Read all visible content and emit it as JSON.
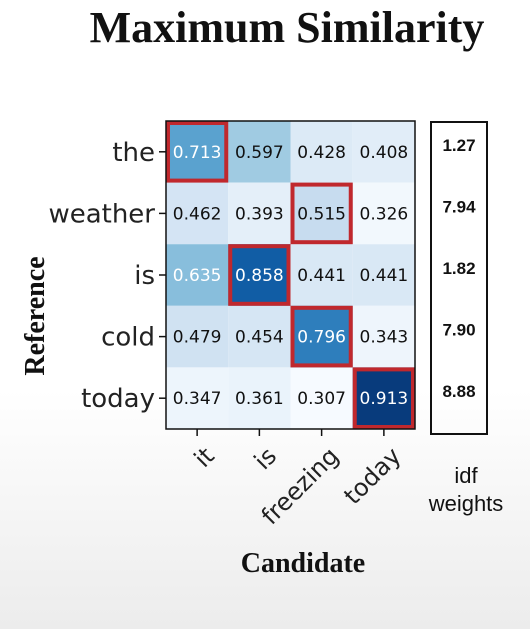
{
  "chart_data": {
    "type": "heatmap",
    "title": "Maximum Similarity",
    "xlabel": "Candidate",
    "ylabel": "Reference",
    "x_categories": [
      "it",
      "is",
      "freezing",
      "today"
    ],
    "y_categories": [
      "the",
      "weather",
      "is",
      "cold",
      "today"
    ],
    "values": [
      [
        0.713,
        0.597,
        0.428,
        0.408
      ],
      [
        0.462,
        0.393,
        0.515,
        0.326
      ],
      [
        0.635,
        0.858,
        0.441,
        0.441
      ],
      [
        0.479,
        0.454,
        0.796,
        0.343
      ],
      [
        0.347,
        0.361,
        0.307,
        0.913
      ]
    ],
    "value_labels": [
      [
        "0.713",
        "0.597",
        "0.428",
        "0.408"
      ],
      [
        "0.462",
        "0.393",
        "0.515",
        "0.326"
      ],
      [
        "0.635",
        "0.858",
        "0.441",
        "0.441"
      ],
      [
        "0.479",
        "0.454",
        "0.796",
        "0.343"
      ],
      [
        "0.347",
        "0.361",
        "0.307",
        "0.913"
      ]
    ],
    "highlighted_max": [
      {
        "row": "the",
        "col": "it"
      },
      {
        "row": "weather",
        "col": "freezing"
      },
      {
        "row": "is",
        "col": "is"
      },
      {
        "row": "cold",
        "col": "freezing"
      },
      {
        "row": "today",
        "col": "today"
      }
    ],
    "idf_weights": {
      "header": "idf\nweights",
      "values": [
        "1.27",
        "7.94",
        "1.82",
        "7.90",
        "8.88"
      ]
    },
    "colors": {
      "highlight_border": "#c0282d",
      "colormap": "Blues",
      "text_dark": "#111111",
      "text_light": "#ffffff"
    }
  }
}
